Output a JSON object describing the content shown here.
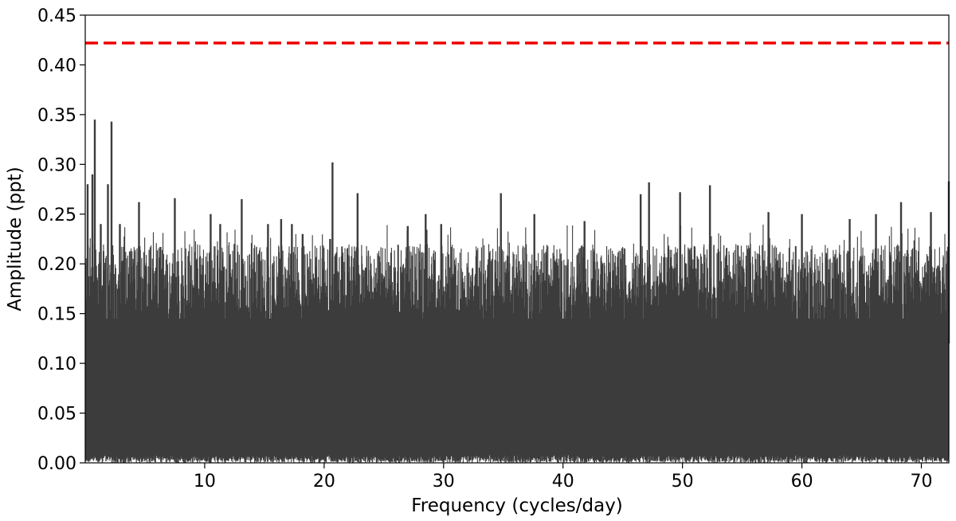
{
  "chart_data": {
    "type": "line",
    "xlabel": "Frequency (cycles/day)",
    "ylabel": "Amplitude (ppt)",
    "xlim": [
      0,
      72.3
    ],
    "ylim": [
      0,
      0.45
    ],
    "x_ticks": [
      10,
      20,
      30,
      40,
      50,
      60,
      70
    ],
    "x_tick_labels": [
      "10",
      "20",
      "30",
      "40",
      "50",
      "60",
      "70"
    ],
    "y_ticks": [
      0.0,
      0.05,
      0.1,
      0.15,
      0.2,
      0.25,
      0.3,
      0.35,
      0.4,
      0.45
    ],
    "y_tick_labels": [
      "0.00",
      "0.05",
      "0.10",
      "0.15",
      "0.20",
      "0.25",
      "0.30",
      "0.35",
      "0.40",
      "0.45"
    ],
    "grid": false,
    "series": [
      {
        "color": "#3c3c3c",
        "style": "dense periodogram (noise envelope)",
        "peaks": [
          {
            "x": 0.2,
            "y": 0.28
          },
          {
            "x": 0.6,
            "y": 0.29
          },
          {
            "x": 0.8,
            "y": 0.345
          },
          {
            "x": 1.3,
            "y": 0.24
          },
          {
            "x": 1.9,
            "y": 0.28
          },
          {
            "x": 2.2,
            "y": 0.343
          },
          {
            "x": 2.9,
            "y": 0.24
          },
          {
            "x": 4.5,
            "y": 0.262
          },
          {
            "x": 6.3,
            "y": 0.217
          },
          {
            "x": 7.5,
            "y": 0.266
          },
          {
            "x": 10.5,
            "y": 0.25
          },
          {
            "x": 11.3,
            "y": 0.24
          },
          {
            "x": 12.5,
            "y": 0.22
          },
          {
            "x": 13.1,
            "y": 0.265
          },
          {
            "x": 15.3,
            "y": 0.24
          },
          {
            "x": 16.4,
            "y": 0.245
          },
          {
            "x": 17.3,
            "y": 0.24
          },
          {
            "x": 18.2,
            "y": 0.23
          },
          {
            "x": 20.5,
            "y": 0.225
          },
          {
            "x": 20.7,
            "y": 0.302
          },
          {
            "x": 22.8,
            "y": 0.271
          },
          {
            "x": 27.0,
            "y": 0.238
          },
          {
            "x": 28.5,
            "y": 0.25
          },
          {
            "x": 29.8,
            "y": 0.24
          },
          {
            "x": 34.8,
            "y": 0.271
          },
          {
            "x": 37.6,
            "y": 0.25
          },
          {
            "x": 41.8,
            "y": 0.243
          },
          {
            "x": 46.5,
            "y": 0.27
          },
          {
            "x": 47.2,
            "y": 0.282
          },
          {
            "x": 49.8,
            "y": 0.272
          },
          {
            "x": 52.3,
            "y": 0.279
          },
          {
            "x": 57.2,
            "y": 0.252
          },
          {
            "x": 60.0,
            "y": 0.25
          },
          {
            "x": 64.0,
            "y": 0.245
          },
          {
            "x": 66.2,
            "y": 0.25
          },
          {
            "x": 68.3,
            "y": 0.262
          },
          {
            "x": 70.8,
            "y": 0.252
          },
          {
            "x": 72.3,
            "y": 0.283
          }
        ],
        "typical_upper_envelope": [
          0.15,
          0.22
        ],
        "floor": 0.0
      }
    ],
    "hlines": [
      {
        "y": 0.422,
        "color": "#ee0000",
        "style": "dashed"
      }
    ]
  }
}
